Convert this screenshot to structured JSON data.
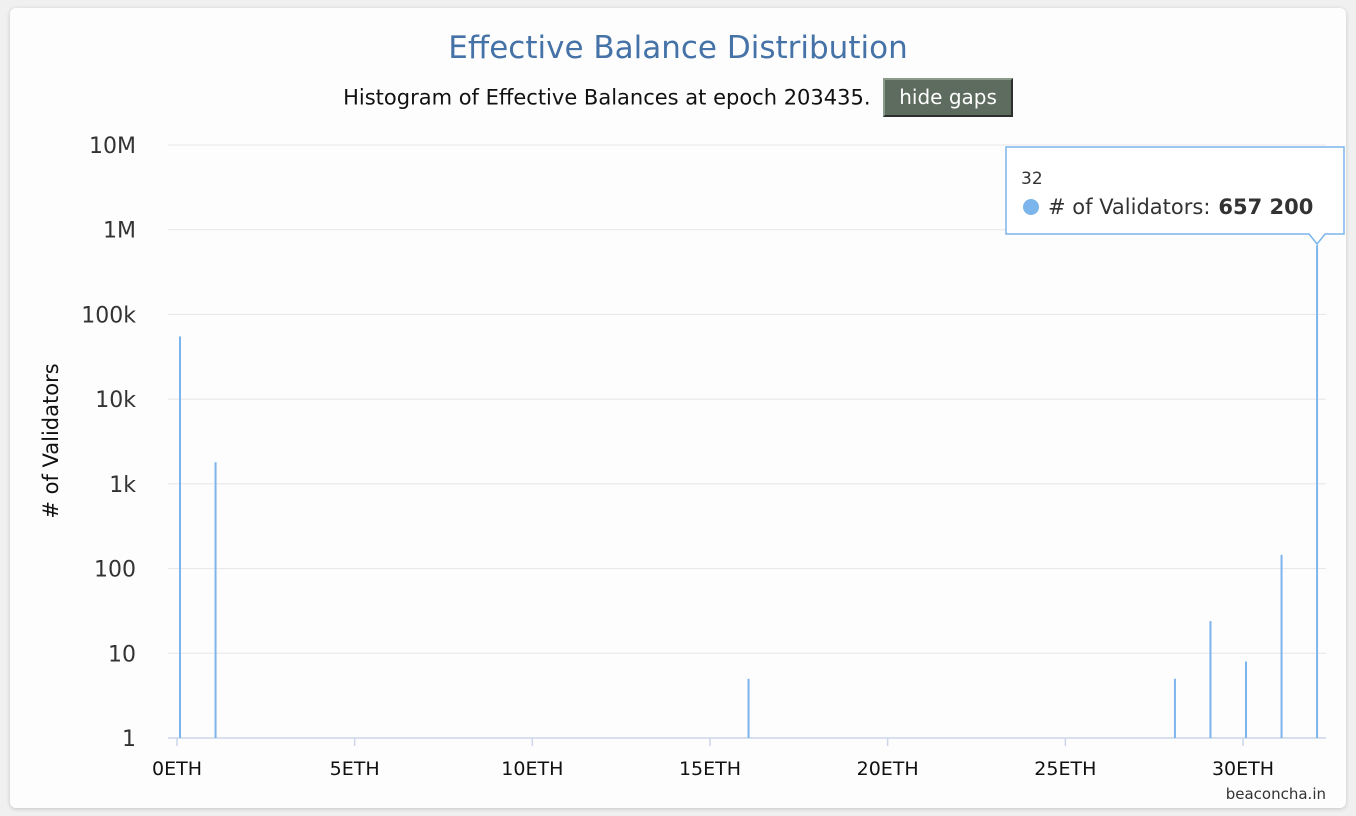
{
  "chart_data": {
    "type": "bar",
    "title": "Effective Balance Distribution",
    "subtitle": "Histogram of Effective Balances at epoch 203435.",
    "ylabel": "# of Validators",
    "xlabel": "",
    "y_scale": "log",
    "ylim": [
      1,
      10000000
    ],
    "xlim": [
      0,
      32
    ],
    "y_ticks": [
      {
        "value": 1,
        "label": "1"
      },
      {
        "value": 10,
        "label": "10"
      },
      {
        "value": 100,
        "label": "100"
      },
      {
        "value": 1000,
        "label": "1k"
      },
      {
        "value": 10000,
        "label": "10k"
      },
      {
        "value": 100000,
        "label": "100k"
      },
      {
        "value": 1000000,
        "label": "1M"
      },
      {
        "value": 10000000,
        "label": "10M"
      }
    ],
    "x_ticks": [
      {
        "value": 0,
        "label": "0ETH"
      },
      {
        "value": 5,
        "label": "5ETH"
      },
      {
        "value": 10,
        "label": "10ETH"
      },
      {
        "value": 15,
        "label": "15ETH"
      },
      {
        "value": 20,
        "label": "20ETH"
      },
      {
        "value": 25,
        "label": "25ETH"
      },
      {
        "value": 30,
        "label": "30ETH"
      }
    ],
    "grid": true,
    "legend": "none",
    "series": [
      {
        "name": "# of Validators",
        "color": "#7cb5ec",
        "points": [
          {
            "x": 0,
            "y": 55000
          },
          {
            "x": 1,
            "y": 1800
          },
          {
            "x": 16,
            "y": 5
          },
          {
            "x": 28,
            "y": 5
          },
          {
            "x": 29,
            "y": 24
          },
          {
            "x": 30,
            "y": 8
          },
          {
            "x": 31,
            "y": 145
          },
          {
            "x": 32,
            "y": 657200
          }
        ]
      }
    ],
    "tooltip": {
      "x_label": "32",
      "series_label": "# of Validators:",
      "value_label": "657 200"
    }
  },
  "button": {
    "label": "hide gaps"
  },
  "credits": "beaconcha.in",
  "colors": {
    "title": "#4572a7",
    "bar": "#7cb5ec",
    "button_bg": "#5e6b5f",
    "grid": "#e6e6e6"
  }
}
